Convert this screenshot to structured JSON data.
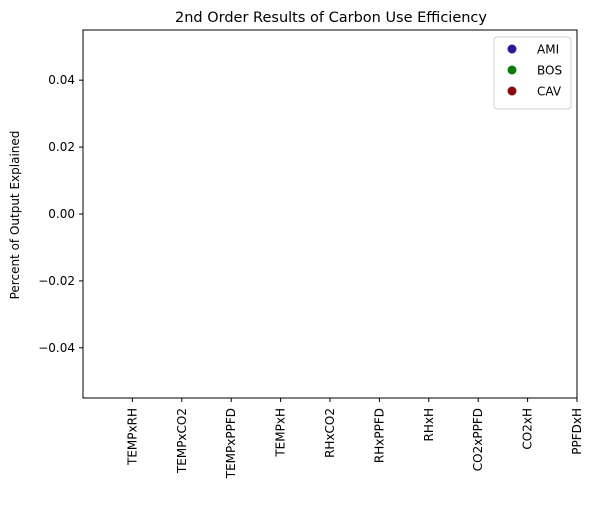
{
  "chart_data": {
    "type": "scatter",
    "title": "2nd Order Results of Carbon Use Efficiency",
    "xlabel": "",
    "ylabel": "Percent of Output Explained",
    "categories": [
      "TEMPxRH",
      "TEMPxCO2",
      "TEMPxPPFD",
      "TEMPxH",
      "RHxCO2",
      "RHxPPFD",
      "RHxH",
      "CO2xPPFD",
      "CO2xH",
      "PPFDxH"
    ],
    "ylim": [
      -0.055,
      0.055
    ],
    "yticks": [
      -0.04,
      -0.02,
      0.0,
      0.02,
      0.04
    ],
    "ytick_labels": [
      "−0.04",
      "−0.02",
      "0.00",
      "0.02",
      "0.04"
    ],
    "grid": false,
    "legend_position": "top-right",
    "series": [
      {
        "name": "AMI",
        "color": "#2a1a9b",
        "values": []
      },
      {
        "name": "BOS",
        "color": "#0a7a0a",
        "values": []
      },
      {
        "name": "CAV",
        "color": "#8b0a0a",
        "values": []
      }
    ]
  }
}
